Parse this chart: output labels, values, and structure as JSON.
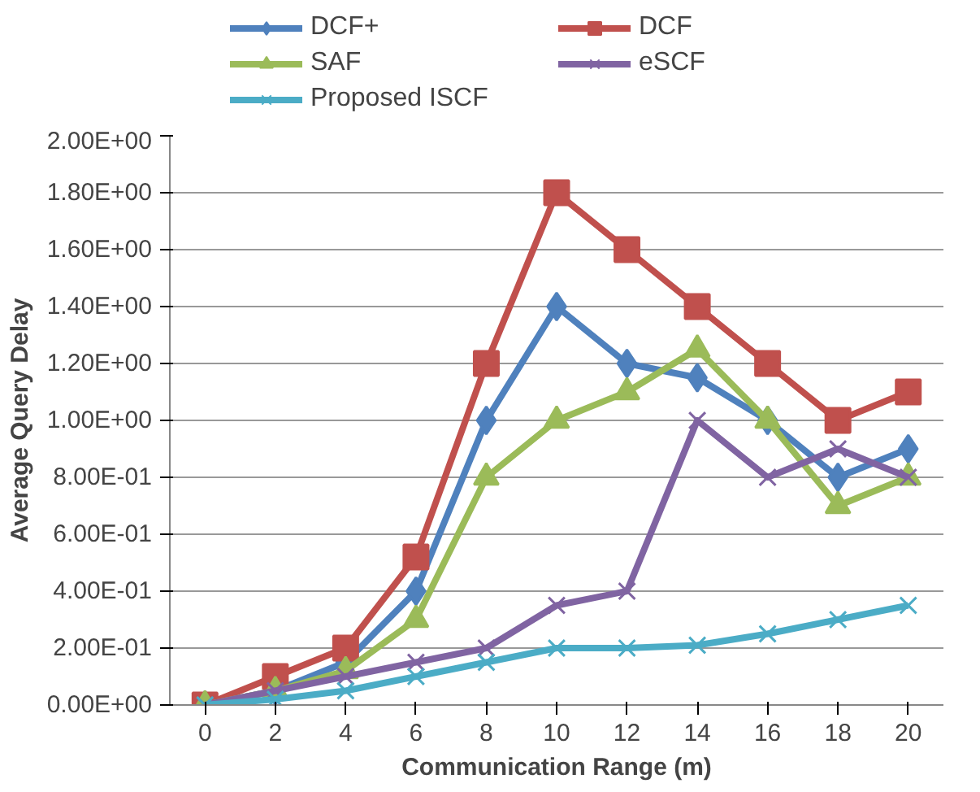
{
  "chart_data": {
    "type": "line",
    "xlabel": "Communication Range (m)",
    "ylabel": "Average Query Delay",
    "x": [
      0,
      2,
      4,
      6,
      8,
      10,
      12,
      14,
      16,
      18,
      20
    ],
    "series": [
      {
        "name": "DCF+",
        "color": "#4f81bd",
        "marker": "diamond",
        "values": [
          0,
          0.05,
          0.15,
          0.4,
          1.0,
          1.4,
          1.2,
          1.15,
          1.0,
          0.8,
          0.9
        ]
      },
      {
        "name": "DCF",
        "color": "#c0504d",
        "marker": "square",
        "values": [
          0,
          0.1,
          0.2,
          0.52,
          1.2,
          1.8,
          1.6,
          1.4,
          1.2,
          1.0,
          1.1
        ]
      },
      {
        "name": "SAF",
        "color": "#9bbb59",
        "marker": "triangle",
        "values": [
          0,
          0.05,
          0.12,
          0.3,
          0.8,
          1.0,
          1.1,
          1.25,
          1.0,
          0.7,
          0.8
        ]
      },
      {
        "name": "eSCF",
        "color": "#8064a2",
        "marker": "cross",
        "values": [
          0,
          0.05,
          0.1,
          0.15,
          0.2,
          0.35,
          0.4,
          1.0,
          0.8,
          0.9,
          0.8
        ]
      },
      {
        "name": "Proposed ISCF",
        "color": "#4bacc6",
        "marker": "cross",
        "values": [
          0,
          0.02,
          0.05,
          0.1,
          0.15,
          0.2,
          0.2,
          0.21,
          0.25,
          0.3,
          0.35
        ]
      }
    ],
    "xlim": [
      -1,
      21
    ],
    "xticks": [
      0,
      2,
      4,
      6,
      8,
      10,
      12,
      14,
      16,
      18,
      20
    ],
    "ylim": [
      0,
      2
    ],
    "yticks": [
      {
        "value": 0,
        "label": "0.00E+00"
      },
      {
        "value": 0.2,
        "label": "2.00E-01"
      },
      {
        "value": 0.4,
        "label": "4.00E-01"
      },
      {
        "value": 0.6,
        "label": "6.00E-01"
      },
      {
        "value": 0.8,
        "label": "8.00E-01"
      },
      {
        "value": 1.0,
        "label": "1.00E+00"
      },
      {
        "value": 1.2,
        "label": "1.20E+00"
      },
      {
        "value": 1.4,
        "label": "1.40E+00"
      },
      {
        "value": 1.6,
        "label": "1.60E+00"
      },
      {
        "value": 1.8,
        "label": "1.80E+00"
      },
      {
        "value": 2.0,
        "label": "2.00E+00"
      }
    ],
    "grid": "y",
    "legend": "top",
    "line_style": "solid"
  }
}
